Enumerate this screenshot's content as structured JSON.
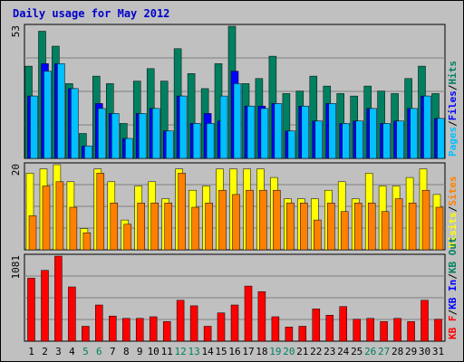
{
  "chart_data": {
    "type": "bar",
    "title": "Daily usage for May 2012",
    "categories": [
      "1",
      "2",
      "3",
      "4",
      "5",
      "6",
      "7",
      "8",
      "9",
      "10",
      "11",
      "12",
      "13",
      "14",
      "15",
      "16",
      "17",
      "18",
      "19",
      "20",
      "21",
      "22",
      "23",
      "24",
      "25",
      "26",
      "27",
      "28",
      "29",
      "30",
      "31"
    ],
    "weekend_days": [
      "5",
      "6",
      "12",
      "13",
      "19",
      "20",
      "26",
      "27"
    ],
    "panels": [
      {
        "id": "top",
        "ymax_label": "53",
        "ylim": [
          0,
          53
        ],
        "legend": [
          "Pages",
          "/",
          "Files",
          "/",
          "Hits"
        ],
        "series": [
          {
            "name": "Hits",
            "color": "#008060",
            "values": [
              37,
              51,
              45,
              30,
              10,
              33,
              30,
              14,
              31,
              36,
              31,
              44,
              34,
              28,
              38,
              53,
              30,
              32,
              41,
              26,
              27,
              33,
              29,
              26,
              25,
              29,
              27,
              26,
              32,
              37,
              26
            ]
          },
          {
            "name": "Files",
            "color": "#0000ff",
            "values": [
              25,
              38,
              38,
              28,
              5,
              22,
              18,
              8,
              18,
              20,
              11,
              25,
              14,
              18,
              15,
              35,
              21,
              21,
              22,
              11,
              21,
              15,
              22,
              14,
              15,
              20,
              14,
              15,
              20,
              25,
              16
            ]
          },
          {
            "name": "Pages",
            "color": "#00c0ff",
            "values": [
              25,
              35,
              38,
              28,
              5,
              20,
              18,
              8,
              18,
              20,
              11,
              25,
              14,
              14,
              25,
              30,
              21,
              20,
              22,
              11,
              21,
              15,
              22,
              14,
              15,
              20,
              14,
              15,
              20,
              25,
              16
            ]
          }
        ]
      },
      {
        "id": "middle",
        "ymax_label": "20",
        "ylim": [
          0,
          20
        ],
        "legend": [
          "Visits",
          "/",
          "Sites"
        ],
        "series": [
          {
            "name": "Visits",
            "color": "#ffff00",
            "values": [
              18,
              19,
              20,
              16,
              5,
              19,
              16,
              7,
              15,
              16,
              12,
              19,
              14,
              15,
              19,
              19,
              19,
              19,
              17,
              12,
              12,
              12,
              14,
              16,
              12,
              18,
              15,
              15,
              17,
              19,
              13
            ]
          },
          {
            "name": "Sites",
            "color": "#ff8000",
            "values": [
              8,
              15,
              16,
              10,
              4,
              18,
              11,
              6,
              11,
              11,
              11,
              18,
              10,
              11,
              14,
              13,
              14,
              14,
              14,
              11,
              11,
              7,
              11,
              9,
              11,
              11,
              9,
              12,
              11,
              14,
              10
            ]
          }
        ]
      },
      {
        "id": "bottom",
        "ymax_label": "1081",
        "ylim": [
          0,
          1081
        ],
        "legend": [
          "KB F",
          "/",
          "KB In",
          "/",
          "KB Out"
        ],
        "series": [
          {
            "name": "KB F",
            "color": "#ff0000",
            "values": [
              800,
              900,
              1081,
              690,
              190,
              460,
              320,
              290,
              290,
              310,
              250,
              520,
              450,
              190,
              360,
              460,
              700,
              630,
              310,
              180,
              190,
              410,
              330,
              440,
              280,
              290,
              250,
              290,
              250,
              520,
              280
            ]
          }
        ]
      }
    ],
    "colors": {
      "background": "#c0c0c0",
      "border": "#000000",
      "gridline": "#808080",
      "title": "#0000cc",
      "weekday_label": "#000000",
      "weekend_label": "#008060",
      "legend_files": "#0000ff",
      "legend_kbin": "#0000ff",
      "legend_kbout": "#008060",
      "legend_kbf": "#ff0000",
      "legend_pages": "#00c0ff",
      "legend_hits": "#008060",
      "legend_visits": "#ffff00",
      "legend_sites": "#ff8000",
      "legend_sep": "#000000"
    }
  }
}
